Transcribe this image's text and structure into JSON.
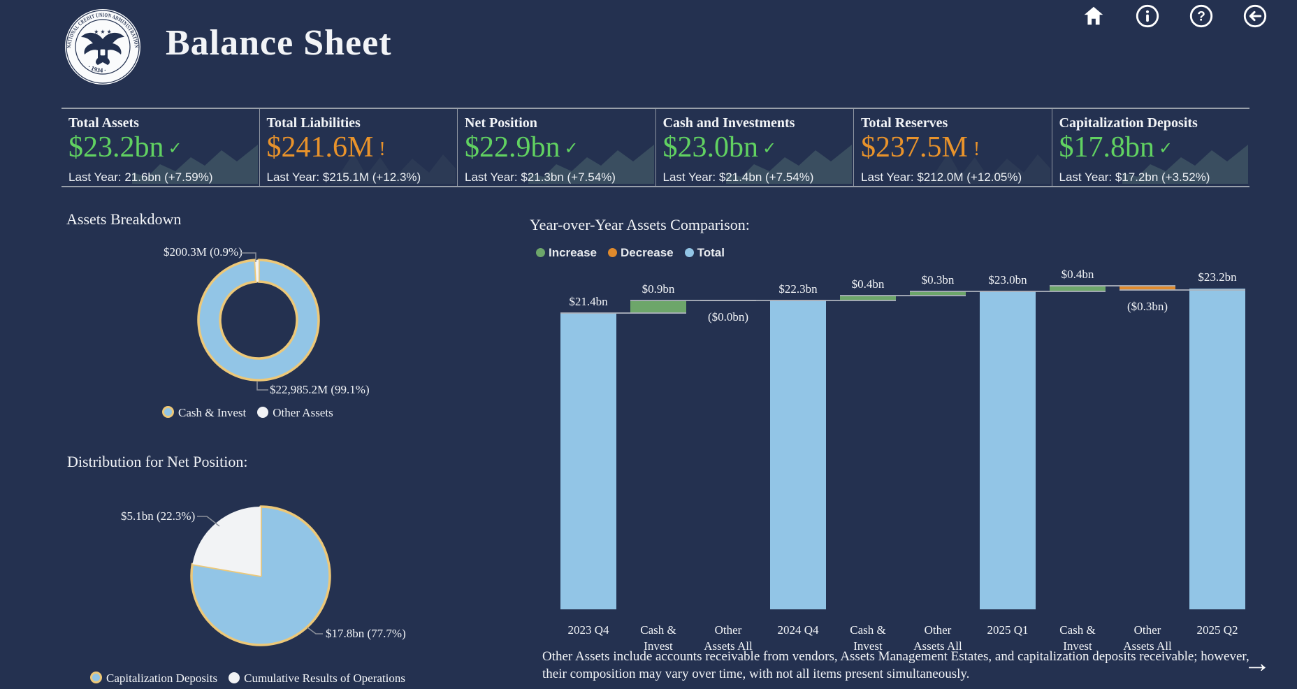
{
  "palette": {
    "bg": "#243150",
    "accent_green": "#61D261",
    "accent_orange": "#E9932B",
    "bar_blue": "#92C5E6",
    "gold": "#EDC878",
    "slice_white": "#F2F3F5",
    "wf_green": "#6DA66A",
    "wf_orange": "#E08A2C",
    "line_gray": "#9AA0AA",
    "leader_gray": "#8B909A"
  },
  "header": {
    "title": "Balance Sheet",
    "logo": {
      "ring_text": "NATIONAL CREDIT UNION ADMINISTRATION",
      "bottom_text": "· 1934 ·"
    },
    "nav_icons": [
      {
        "name": "home"
      },
      {
        "name": "info"
      },
      {
        "name": "help"
      },
      {
        "name": "back"
      }
    ]
  },
  "kpis": [
    {
      "title": "Total Assets",
      "value": "$23.2bn",
      "status": "good",
      "status_icon": "✓",
      "last_year": "Last Year: 21.6bn (+7.59%)"
    },
    {
      "title": "Total Liabilities",
      "value": "$241.6M",
      "status": "warn",
      "status_icon": "!",
      "last_year": "Last Year: $215.1M (+12.3%)"
    },
    {
      "title": "Net Position",
      "value": "$22.9bn",
      "status": "good",
      "status_icon": "✓",
      "last_year": "Last Year: $21.3bn (+7.54%)"
    },
    {
      "title": "Cash and Investments",
      "value": "$23.0bn",
      "status": "good",
      "status_icon": "✓",
      "last_year": "Last Year: $21.4bn (+7.54%)"
    },
    {
      "title": "Total Reserves",
      "value": "$237.5M",
      "status": "warn",
      "status_icon": "!",
      "last_year": "Last Year: $212.0M (+12.05%)"
    },
    {
      "title": "Capitalization Deposits",
      "value": "$17.8bn",
      "status": "good",
      "status_icon": "✓",
      "last_year": "Last Year: $17.2bn (+3.52%)"
    }
  ],
  "assets_breakdown": {
    "section_title": "Assets Breakdown",
    "legend": [
      {
        "label": "Cash & Invest",
        "swatch": "blue-gold"
      },
      {
        "label": "Other Assets",
        "swatch": "white"
      }
    ]
  },
  "net_position": {
    "section_title": "Distribution for Net Position:",
    "legend": [
      {
        "label": "Capitalization Deposits",
        "swatch": "blue-gold"
      },
      {
        "label": "Cumulative Results of Operations",
        "swatch": "white"
      }
    ]
  },
  "waterfall_section": {
    "section_title": "Year-over-Year Assets Comparison:",
    "legend": [
      {
        "label": "Increase",
        "color_key": "wf_green"
      },
      {
        "label": "Decrease",
        "color_key": "wf_orange"
      },
      {
        "label": "Total",
        "color_key": "bar_blue"
      }
    ]
  },
  "footnote": {
    "line1": "Other Assets include accounts receivable from vendors, Assets Management Estates, and capitalization deposits receivable; however,",
    "line2": "their composition may vary over time, with not all items present simultaneously."
  },
  "pagination": {
    "next_arrow": "→"
  },
  "chart_data": [
    {
      "id": "assets_breakdown_donut",
      "type": "pie",
      "subtype": "donut",
      "title": "Assets Breakdown",
      "slices": [
        {
          "label": "Cash & Invest",
          "pct": 99.1,
          "value_text": "$22,985.2M (99.1%)",
          "color_key": "bar_blue",
          "gold_outline": true
        },
        {
          "label": "Other Assets",
          "pct": 0.9,
          "value_text": "$200.3M (0.9%)",
          "color_key": "slice_white",
          "gold_outline": false
        }
      ],
      "legend_position": "bottom"
    },
    {
      "id": "net_position_pie",
      "type": "pie",
      "title": "Distribution for Net Position:",
      "slices": [
        {
          "label": "Capitalization Deposits",
          "pct": 77.7,
          "value_text": "$17.8bn (77.7%)",
          "color_key": "bar_blue",
          "gold_outline": true
        },
        {
          "label": "Cumulative Results of Operations",
          "pct": 22.3,
          "value_text": "$5.1bn (22.3%)",
          "color_key": "slice_white",
          "gold_outline": false
        }
      ],
      "legend_position": "bottom"
    },
    {
      "id": "yoy_assets_waterfall",
      "type": "bar",
      "subtype": "waterfall",
      "title": "Year-over-Year Assets Comparison:",
      "unit": "USD bn",
      "ylim": [
        0,
        23.4
      ],
      "legend": [
        "Increase",
        "Decrease",
        "Total"
      ],
      "steps": [
        {
          "category": "2023 Q4",
          "cat_lines": [
            "2023 Q4"
          ],
          "kind": "total",
          "value": 21.4,
          "label": "$21.4bn"
        },
        {
          "category": "Cash & Invest",
          "cat_lines": [
            "Cash &",
            "Invest"
          ],
          "kind": "increase",
          "value": 0.9,
          "label": "$0.9bn"
        },
        {
          "category": "Other Assets All",
          "cat_lines": [
            "Other",
            "Assets All"
          ],
          "kind": "decrease",
          "value": 0.0,
          "label": "($0.0bn)"
        },
        {
          "category": "2024 Q4",
          "cat_lines": [
            "2024 Q4"
          ],
          "kind": "total",
          "value": 22.3,
          "label": "$22.3bn"
        },
        {
          "category": "Cash & Invest",
          "cat_lines": [
            "Cash &",
            "Invest"
          ],
          "kind": "increase",
          "value": 0.4,
          "label": "$0.4bn"
        },
        {
          "category": "Other Assets All",
          "cat_lines": [
            "Other",
            "Assets All"
          ],
          "kind": "increase",
          "value": 0.3,
          "label": "$0.3bn"
        },
        {
          "category": "2025 Q1",
          "cat_lines": [
            "2025 Q1"
          ],
          "kind": "total",
          "value": 23.0,
          "label": "$23.0bn"
        },
        {
          "category": "Cash & Invest",
          "cat_lines": [
            "Cash &",
            "Invest"
          ],
          "kind": "increase",
          "value": 0.4,
          "label": "$0.4bn"
        },
        {
          "category": "Other Assets All",
          "cat_lines": [
            "Other",
            "Assets All"
          ],
          "kind": "decrease",
          "value": -0.3,
          "label": "($0.3bn)"
        },
        {
          "category": "2025 Q2",
          "cat_lines": [
            "2025 Q2"
          ],
          "kind": "total",
          "value": 23.2,
          "label": "$23.2bn"
        }
      ]
    }
  ]
}
